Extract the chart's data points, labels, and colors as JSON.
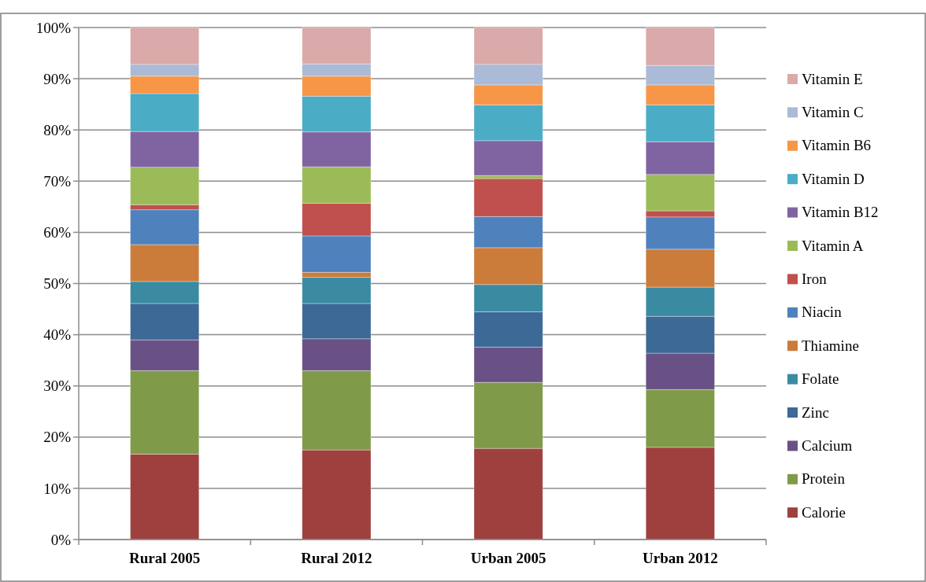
{
  "chart_data": {
    "type": "bar",
    "stacked": true,
    "categories": [
      "Rural 2005",
      "Rural 2012",
      "Urban 2005",
      "Urban 2012"
    ],
    "series": [
      {
        "name": "Calorie",
        "color": "#9e413e",
        "values": [
          16.7,
          17.5,
          17.8,
          18.0
        ]
      },
      {
        "name": "Protein",
        "color": "#7f9a48",
        "values": [
          16.3,
          15.5,
          12.9,
          11.3
        ]
      },
      {
        "name": "Calcium",
        "color": "#695185",
        "values": [
          6.0,
          6.2,
          6.9,
          7.1
        ]
      },
      {
        "name": "Zinc",
        "color": "#3c6996",
        "values": [
          7.1,
          6.9,
          6.9,
          7.2
        ]
      },
      {
        "name": "Folate",
        "color": "#3a8ba1",
        "values": [
          4.3,
          5.1,
          5.3,
          5.7
        ]
      },
      {
        "name": "Thiamine",
        "color": "#cb7b3a",
        "values": [
          7.2,
          1.0,
          7.2,
          7.4
        ]
      },
      {
        "name": "Niacin",
        "color": "#4f81bd",
        "values": [
          6.8,
          7.1,
          6.1,
          6.3
        ]
      },
      {
        "name": "Iron",
        "color": "#c0504d",
        "values": [
          1.0,
          6.4,
          7.4,
          1.2
        ]
      },
      {
        "name": "Vitamin A",
        "color": "#9bbb59",
        "values": [
          7.3,
          7.1,
          0.6,
          7.1
        ]
      },
      {
        "name": "Vitamin B12",
        "color": "#8064a2",
        "values": [
          7.0,
          6.8,
          6.8,
          6.4
        ]
      },
      {
        "name": "Vitamin D",
        "color": "#4bacc6",
        "values": [
          7.4,
          7.0,
          7.0,
          7.2
        ]
      },
      {
        "name": "Vitamin B6",
        "color": "#f79646",
        "values": [
          3.4,
          3.9,
          3.9,
          3.9
        ]
      },
      {
        "name": "Vitamin C",
        "color": "#aabad7",
        "values": [
          2.3,
          2.4,
          4.0,
          3.8
        ]
      },
      {
        "name": "Vitamin E",
        "color": "#d9aaa9",
        "values": [
          7.2,
          7.1,
          7.2,
          7.4
        ]
      }
    ],
    "ylim": [
      0,
      100
    ],
    "yticks": [
      {
        "value": 0,
        "label": "0%"
      },
      {
        "value": 10,
        "label": "10%"
      },
      {
        "value": 20,
        "label": "20%"
      },
      {
        "value": 30,
        "label": "30%"
      },
      {
        "value": 40,
        "label": "40%"
      },
      {
        "value": 50,
        "label": "50%"
      },
      {
        "value": 60,
        "label": "60%"
      },
      {
        "value": 70,
        "label": "70%"
      },
      {
        "value": 80,
        "label": "80%"
      },
      {
        "value": 90,
        "label": "90%"
      },
      {
        "value": 100,
        "label": "100%"
      }
    ],
    "grid": "y",
    "legend": "right"
  }
}
